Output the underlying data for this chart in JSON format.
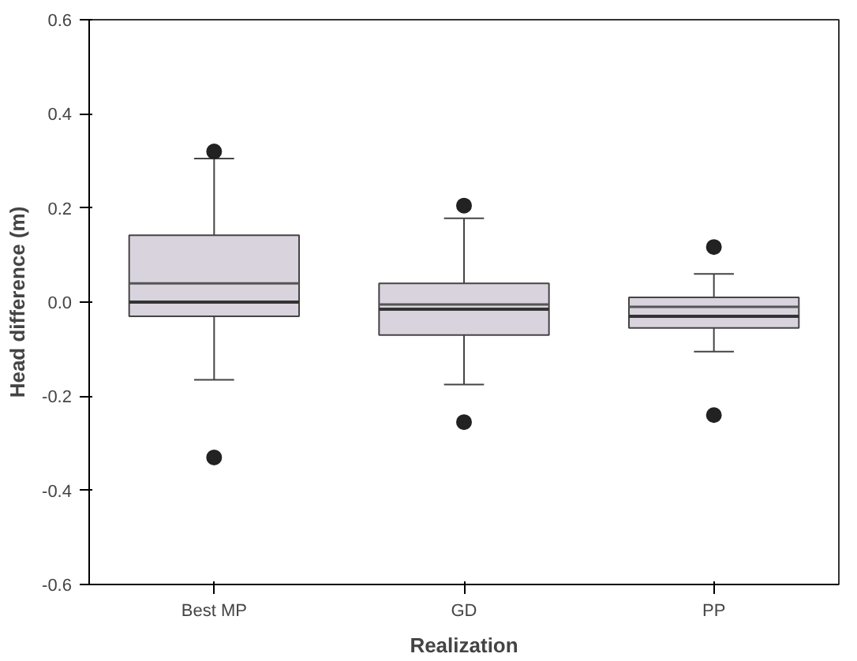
{
  "chart_data": {
    "type": "box",
    "xlabel": "Realization",
    "ylabel": "Head difference (m)",
    "categories": [
      "Best MP",
      "GD",
      "PP"
    ],
    "boxes": [
      {
        "low": -0.165,
        "q1": -0.03,
        "median": 0.0,
        "q3": 0.142,
        "high": 0.305,
        "mean": 0.04,
        "outliers": [
          0.32,
          -0.33
        ]
      },
      {
        "low": -0.175,
        "q1": -0.07,
        "median": -0.015,
        "q3": 0.04,
        "high": 0.178,
        "mean": -0.005,
        "outliers": [
          0.205,
          -0.255
        ]
      },
      {
        "low": -0.105,
        "q1": -0.055,
        "median": -0.03,
        "q3": 0.01,
        "high": 0.06,
        "mean": -0.01,
        "outliers": [
          0.117,
          -0.24
        ]
      }
    ],
    "color": "#d9d3dd",
    "ylim": [
      -0.6,
      0.6
    ],
    "yticks": [
      {
        "value": -0.6,
        "label": "-0.6"
      },
      {
        "value": -0.4,
        "label": "-0.4"
      },
      {
        "value": -0.2,
        "label": "-0.2"
      },
      {
        "value": 0,
        "label": "0.0"
      },
      {
        "value": 0.2,
        "label": "0.2"
      },
      {
        "value": 0.4,
        "label": "0.4"
      },
      {
        "value": 0.6,
        "label": "0.6"
      }
    ],
    "grid": false
  }
}
